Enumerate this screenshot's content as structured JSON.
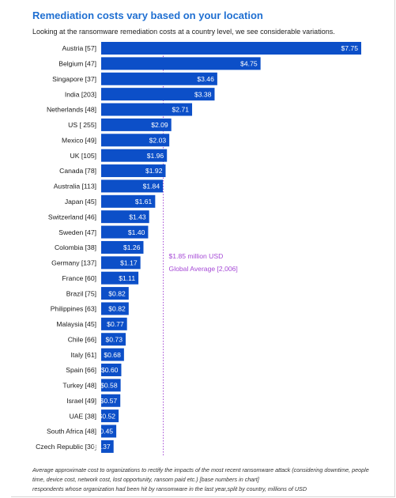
{
  "title": "Remediation costs vary based on your location",
  "subtitle": "Looking at the ransomware remediation costs at a country level, we see considerable variations.",
  "footnote_line1": "Average approximate cost to organizations to rectify the impacts of the most recent ransomware attack (considering downtime, people time, device cost, network cost, lost opportunity, ransom paid etc.) [base numbers in chart]",
  "footnote_line2": "respondents whose organization had been hit by ransomware in the last year,split by country, millions of USD",
  "colors": {
    "bar": "#0c4fc8",
    "bar_label": "#ffffff",
    "average_line": "#a64ad6",
    "average_text": "#a64ad6",
    "title": "#1f6fd1"
  },
  "chart_data": {
    "type": "bar",
    "orientation": "horizontal",
    "title": "Remediation costs vary based on your location",
    "xlabel": "",
    "ylabel": "",
    "xlim": [
      0,
      7.75
    ],
    "grid": false,
    "legend": "none",
    "categories": [
      "Austria [57]",
      "Belgium [47]",
      "Singapore [37]",
      "India [203]",
      "Netherlands [48]",
      "US [ 255]",
      "Mexico [49]",
      "UK [105]",
      "Canada [78]",
      "Australia [113]",
      "Japan [45]",
      "Switzerland [46]",
      "Sweden [47]",
      "Colombia [38]",
      "Germany [137]",
      "France [60]",
      "Brazil [75]",
      "Philippines [63]",
      "Malaysia [45]",
      "Chile [66]",
      "Italy [61]",
      "Spain [66]",
      "Turkey [48]",
      "Israel [49]",
      "UAE [38]",
      "South Africa [48]",
      "Czech Republic [30]"
    ],
    "values": [
      7.75,
      4.75,
      3.46,
      3.38,
      2.71,
      2.09,
      2.03,
      1.96,
      1.92,
      1.84,
      1.61,
      1.43,
      1.4,
      1.26,
      1.17,
      1.11,
      0.82,
      0.82,
      0.77,
      0.73,
      0.68,
      0.6,
      0.58,
      0.57,
      0.52,
      0.45,
      0.37
    ],
    "value_labels": [
      "$7.75",
      "$4.75",
      "$3.46",
      "$3.38",
      "$2.71",
      "$2.09",
      "$2.03",
      "$1.96",
      "$1.92",
      "$1.84",
      "$1.61",
      "$1.43",
      "$1.40",
      "$1.26",
      "$1.17",
      "$1.11",
      "$0.82",
      "$0.82",
      "$0.77",
      "$0.73",
      "$0.68",
      "$0.60",
      "$0.58",
      "$0.57",
      "$0.52",
      "$0.45",
      "$0.37"
    ],
    "reference_line": {
      "value": 1.85,
      "label": "$1.85 million USD",
      "sublabel": "Global Average [2,006]",
      "style": "dotted"
    }
  }
}
